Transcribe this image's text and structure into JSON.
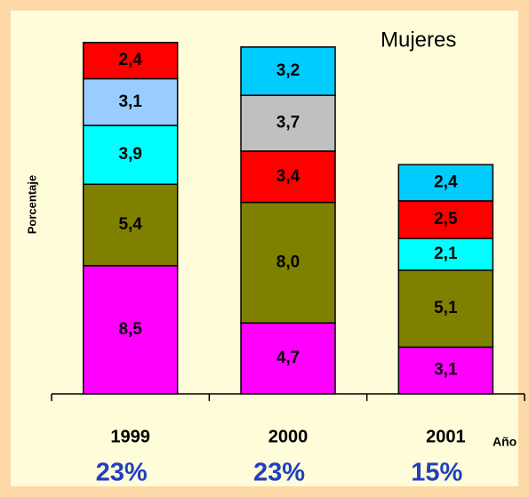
{
  "chart_data": {
    "type": "stacked-bar",
    "title": "Mujeres",
    "y_label": "Porcentaje",
    "x_label": "Año",
    "ylim": [
      0,
      26
    ],
    "categories": [
      "1999",
      "2000",
      "2001"
    ],
    "totals": [
      "23%",
      "23%",
      "15%"
    ],
    "bars": [
      {
        "segments": [
          {
            "value": 8.5,
            "value_label": "8,5",
            "color": "#ff00ff"
          },
          {
            "value": 5.4,
            "value_label": "5,4",
            "color": "#808000"
          },
          {
            "value": 3.9,
            "value_label": "3,9",
            "color": "#00ffff"
          },
          {
            "value": 3.1,
            "value_label": "3,1",
            "color": "#99ccff"
          },
          {
            "value": 2.4,
            "value_label": "2,4",
            "color": "#ff0000"
          }
        ]
      },
      {
        "segments": [
          {
            "value": 4.7,
            "value_label": "4,7",
            "color": "#ff00ff"
          },
          {
            "value": 8.0,
            "value_label": "8,0",
            "color": "#808000"
          },
          {
            "value": 3.4,
            "value_label": "3,4",
            "color": "#ff0000"
          },
          {
            "value": 3.7,
            "value_label": "3,7",
            "color": "#c0c0c0"
          },
          {
            "value": 3.2,
            "value_label": "3,2",
            "color": "#00ccff"
          }
        ]
      },
      {
        "segments": [
          {
            "value": 3.1,
            "value_label": "3,1",
            "color": "#ff00ff"
          },
          {
            "value": 5.1,
            "value_label": "5,1",
            "color": "#808000"
          },
          {
            "value": 2.1,
            "value_label": "2,1",
            "color": "#00ffff"
          },
          {
            "value": 2.5,
            "value_label": "2,5",
            "color": "#ff0000"
          },
          {
            "value": 2.4,
            "value_label": "2,4",
            "color": "#00ccff"
          }
        ]
      }
    ]
  }
}
